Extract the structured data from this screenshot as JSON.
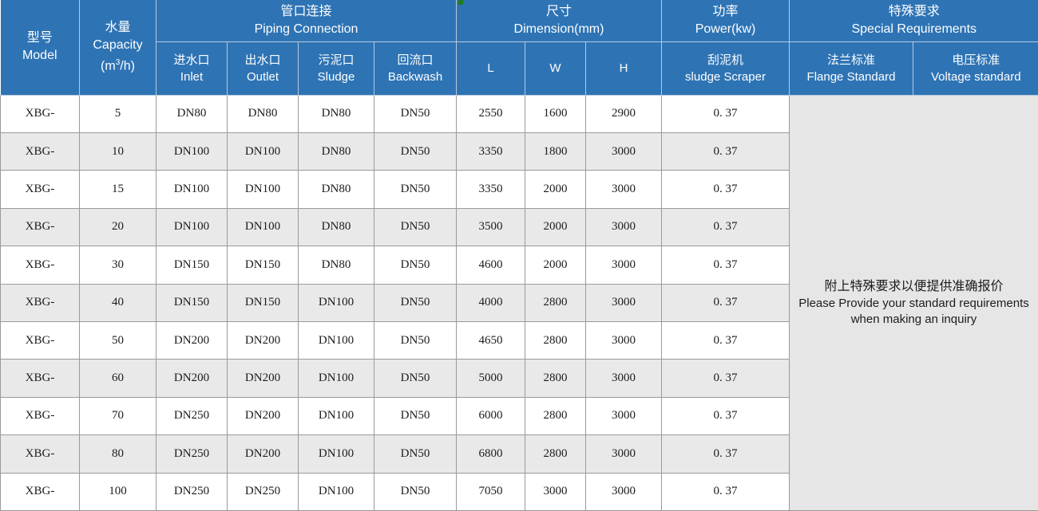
{
  "colors": {
    "header_blue": "#2e74b5",
    "row_alt_gray": "#e9e9e9",
    "note_bg_gray": "#e6e6e6",
    "border_gray": "#9a9a9a",
    "artifact_green": "#1f7a21"
  },
  "table": {
    "column_order": [
      "model",
      "capacity",
      "inlet",
      "outlet",
      "sludge",
      "backwash",
      "l",
      "w",
      "h",
      "power"
    ],
    "header": {
      "model": {
        "zh": "型号",
        "en": "Model"
      },
      "capacity": {
        "zh": "水量",
        "en": "Capacity",
        "unit_open": "(m",
        "unit_sup": "3",
        "unit_close": "/h)"
      },
      "piping": {
        "zh": "管口连接",
        "en": "Piping Connection"
      },
      "inlet": {
        "zh": "进水口",
        "en": "Inlet"
      },
      "outlet": {
        "zh": "出水口",
        "en": "Outlet"
      },
      "sludge": {
        "zh": "污泥口",
        "en": "Sludge"
      },
      "backwash": {
        "zh": "回流口",
        "en": "Backwash"
      },
      "dimension": {
        "zh": "尺寸",
        "en": "Dimension(mm)"
      },
      "l": "L",
      "w": "W",
      "h": "H",
      "power": {
        "zh": "功率",
        "en": "Power(kw)"
      },
      "scraper": {
        "zh": "刮泥机",
        "en": "sludge Scraper"
      },
      "special": {
        "zh": "特殊要求",
        "en": "Special Requirements"
      },
      "flange": {
        "zh": "法兰标准",
        "en": "Flange Standard"
      },
      "voltage": {
        "zh": "电压标准",
        "en": "Voltage standard"
      }
    },
    "rows": [
      {
        "model": "XBG-",
        "capacity": "5",
        "inlet": "DN80",
        "outlet": "DN80",
        "sludge": "DN80",
        "backwash": "DN50",
        "l": "2550",
        "w": "1600",
        "h": "2900",
        "power": "0. 37"
      },
      {
        "model": "XBG-",
        "capacity": "10",
        "inlet": "DN100",
        "outlet": "DN100",
        "sludge": "DN80",
        "backwash": "DN50",
        "l": "3350",
        "w": "1800",
        "h": "3000",
        "power": "0. 37"
      },
      {
        "model": "XBG-",
        "capacity": "15",
        "inlet": "DN100",
        "outlet": "DN100",
        "sludge": "DN80",
        "backwash": "DN50",
        "l": "3350",
        "w": "2000",
        "h": "3000",
        "power": "0. 37"
      },
      {
        "model": "XBG-",
        "capacity": "20",
        "inlet": "DN100",
        "outlet": "DN100",
        "sludge": "DN80",
        "backwash": "DN50",
        "l": "3500",
        "w": "2000",
        "h": "3000",
        "power": "0. 37"
      },
      {
        "model": "XBG-",
        "capacity": "30",
        "inlet": "DN150",
        "outlet": "DN150",
        "sludge": "DN80",
        "backwash": "DN50",
        "l": "4600",
        "w": "2000",
        "h": "3000",
        "power": "0. 37"
      },
      {
        "model": "XBG-",
        "capacity": "40",
        "inlet": "DN150",
        "outlet": "DN150",
        "sludge": "DN100",
        "backwash": "DN50",
        "l": "4000",
        "w": "2800",
        "h": "3000",
        "power": "0. 37"
      },
      {
        "model": "XBG-",
        "capacity": "50",
        "inlet": "DN200",
        "outlet": "DN200",
        "sludge": "DN100",
        "backwash": "DN50",
        "l": "4650",
        "w": "2800",
        "h": "3000",
        "power": "0. 37"
      },
      {
        "model": "XBG-",
        "capacity": "60",
        "inlet": "DN200",
        "outlet": "DN200",
        "sludge": "DN100",
        "backwash": "DN50",
        "l": "5000",
        "w": "2800",
        "h": "3000",
        "power": "0. 37"
      },
      {
        "model": "XBG-",
        "capacity": "70",
        "inlet": "DN250",
        "outlet": "DN200",
        "sludge": "DN100",
        "backwash": "DN50",
        "l": "6000",
        "w": "2800",
        "h": "3000",
        "power": "0. 37"
      },
      {
        "model": "XBG-",
        "capacity": "80",
        "inlet": "DN250",
        "outlet": "DN200",
        "sludge": "DN100",
        "backwash": "DN50",
        "l": "6800",
        "w": "2800",
        "h": "3000",
        "power": "0. 37"
      },
      {
        "model": "XBG-",
        "capacity": "100",
        "inlet": "DN250",
        "outlet": "DN250",
        "sludge": "DN100",
        "backwash": "DN50",
        "l": "7050",
        "w": "3000",
        "h": "3000",
        "power": "0. 37"
      }
    ],
    "note": {
      "zh": "附上特殊要求以便提供准确报价",
      "en_line1": "Please Provide your standard requirements",
      "en_line2": "when making an inquiry"
    }
  }
}
